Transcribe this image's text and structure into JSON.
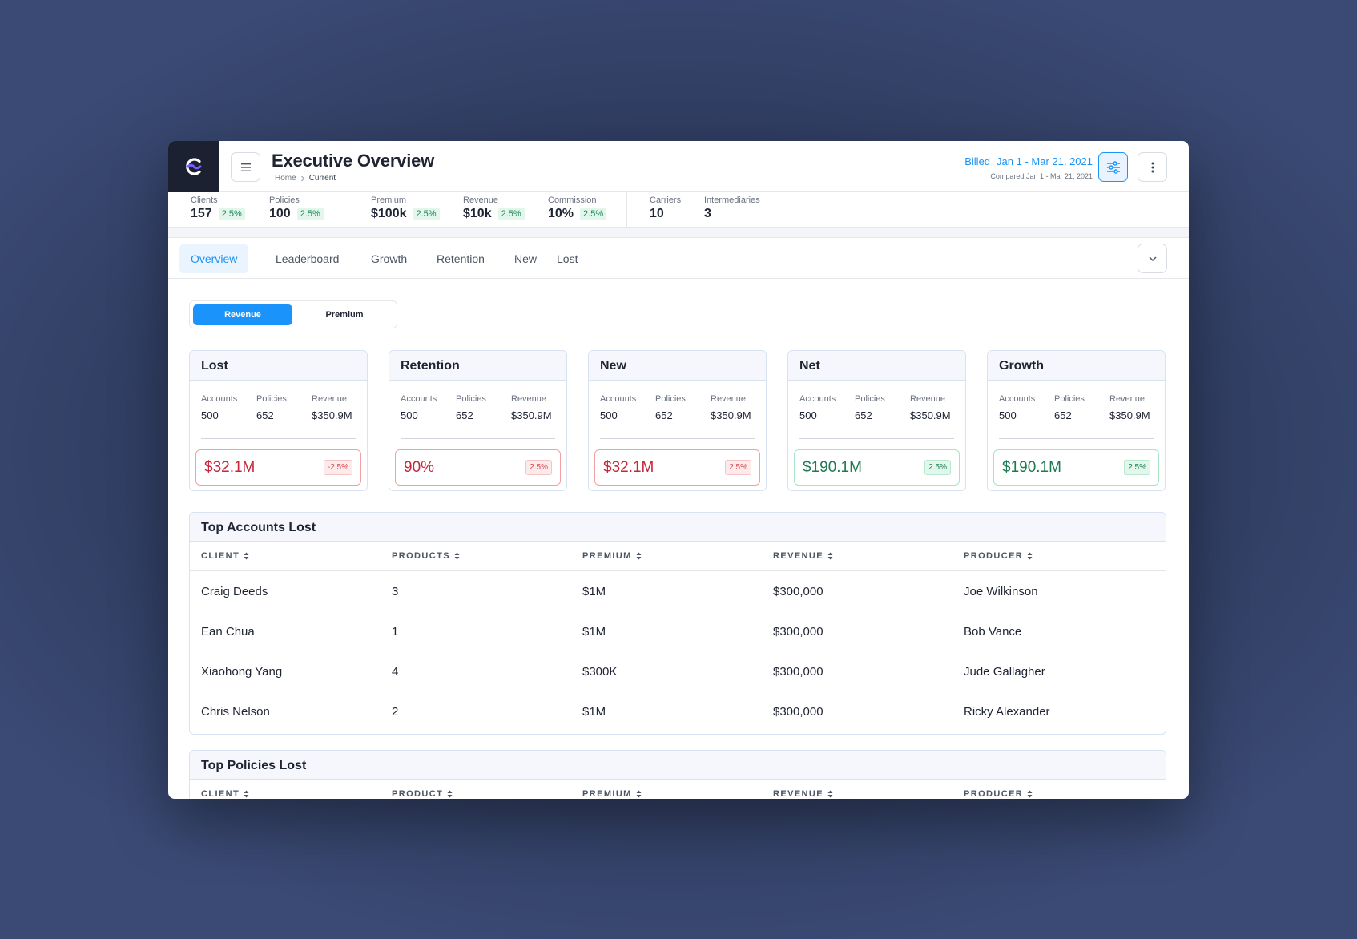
{
  "header": {
    "title": "Executive Overview",
    "breadcrumb": {
      "home": "Home",
      "current": "Current"
    },
    "billed_label": "Billed",
    "billed_range": "Jan 1 - Mar 21, 2021",
    "compared": "Compared Jan 1 - Mar 21, 2021"
  },
  "stats": [
    {
      "label": "Clients",
      "value": "157",
      "badge": "2.5%"
    },
    {
      "label": "Policies",
      "value": "100",
      "badge": "2.5%"
    },
    {
      "label": "Premium",
      "value": "$100k",
      "badge": "2.5%"
    },
    {
      "label": "Revenue",
      "value": "$10k",
      "badge": "2.5%"
    },
    {
      "label": "Commission",
      "value": "10%",
      "badge": "2.5%"
    },
    {
      "label": "Carriers",
      "value": "10"
    },
    {
      "label": "Intermediaries",
      "value": "3"
    }
  ],
  "tabs": [
    "Overview",
    "Leaderboard",
    "Growth",
    "Retention",
    "New",
    "Lost"
  ],
  "toggle": {
    "selected": "Revenue",
    "other": "Premium"
  },
  "cards": [
    {
      "title": "Lost",
      "accounts_label": "Accounts",
      "policies_label": "Policies",
      "revenue_label": "Revenue",
      "accounts": "500",
      "policies": "652",
      "revenue": "$350.9M",
      "total": "$32.1M",
      "change": "-2.5%",
      "tone": "negative"
    },
    {
      "title": "Retention",
      "accounts_label": "Accounts",
      "policies_label": "Policies",
      "revenue_label": "Revenue",
      "accounts": "500",
      "policies": "652",
      "revenue": "$350.9M",
      "total": "90%",
      "change": "2.5%",
      "tone": "negative"
    },
    {
      "title": "New",
      "accounts_label": "Accounts",
      "policies_label": "Policies",
      "revenue_label": "Revenue",
      "accounts": "500",
      "policies": "652",
      "revenue": "$350.9M",
      "total": "$32.1M",
      "change": "2.5%",
      "tone": "negative"
    },
    {
      "title": "Net",
      "accounts_label": "Accounts",
      "policies_label": "Policies",
      "revenue_label": "Revenue",
      "accounts": "500",
      "policies": "652",
      "revenue": "$350.9M",
      "total": "$190.1M",
      "change": "2.5%",
      "tone": "positive"
    },
    {
      "title": "Growth",
      "accounts_label": "Accounts",
      "policies_label": "Policies",
      "revenue_label": "Revenue",
      "accounts": "500",
      "policies": "652",
      "revenue": "$350.9M",
      "total": "$190.1M",
      "change": "2.5%",
      "tone": "positive"
    }
  ],
  "accounts_table": {
    "title": "Top Accounts Lost",
    "columns": [
      "CLIENT",
      "PRODUCTS",
      "PREMIUM",
      "REVENUE",
      "PRODUCER"
    ],
    "rows": [
      [
        "Craig Deeds",
        "3",
        "$1M",
        "$300,000",
        "Joe Wilkinson"
      ],
      [
        "Ean Chua",
        "1",
        "$1M",
        "$300,000",
        "Bob Vance"
      ],
      [
        "Xiaohong Yang",
        "4",
        "$300K",
        "$300,000",
        "Jude Gallagher"
      ],
      [
        "Chris Nelson",
        "2",
        "$1M",
        "$300,000",
        "Ricky Alexander"
      ]
    ]
  },
  "policies_table": {
    "title": "Top Policies Lost",
    "columns": [
      "CLIENT",
      "PRODUCT",
      "PREMIUM",
      "REVENUE",
      "PRODUCER"
    ]
  },
  "colors": {
    "accent": "#1c93f5",
    "negative": "#c8243a",
    "positive": "#1e7a52",
    "logo_bg": "#1c2132"
  },
  "icons": [
    "app-logo-icon",
    "hamburger-menu-icon",
    "chevron-right-icon",
    "sliders-filter-icon",
    "vertical-dots-icon",
    "chevron-down-icon",
    "sort-icon"
  ]
}
